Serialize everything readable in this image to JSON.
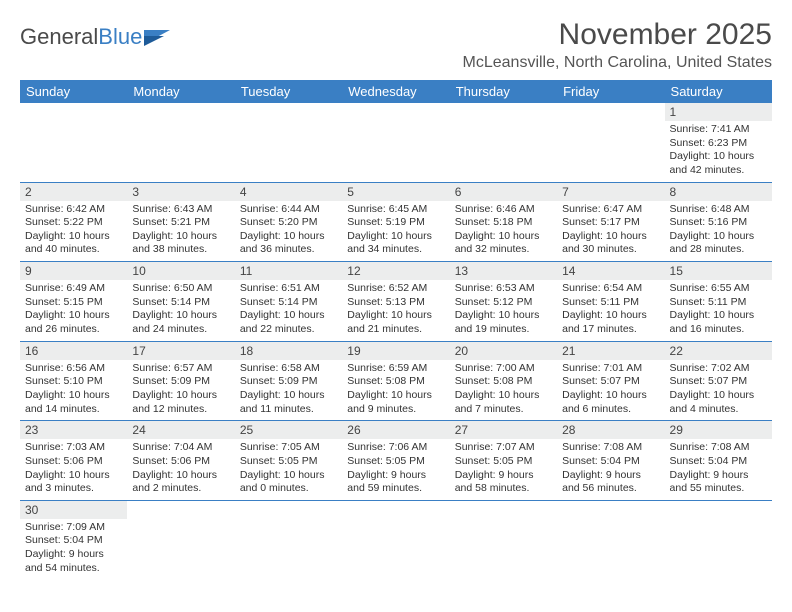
{
  "logo": {
    "general": "General",
    "blue": "Blue"
  },
  "title": "November 2025",
  "location": "McLeansville, North Carolina, United States",
  "day_headers": [
    "Sunday",
    "Monday",
    "Tuesday",
    "Wednesday",
    "Thursday",
    "Friday",
    "Saturday"
  ],
  "colors": {
    "header_bg": "#3a7fc4",
    "header_text": "#ffffff",
    "daynum_bg": "#eceded",
    "border": "#3a7fc4"
  },
  "weeks": [
    [
      null,
      null,
      null,
      null,
      null,
      null,
      {
        "n": "1",
        "sr": "Sunrise: 7:41 AM",
        "ss": "Sunset: 6:23 PM",
        "dl": "Daylight: 10 hours and 42 minutes."
      }
    ],
    [
      {
        "n": "2",
        "sr": "Sunrise: 6:42 AM",
        "ss": "Sunset: 5:22 PM",
        "dl": "Daylight: 10 hours and 40 minutes."
      },
      {
        "n": "3",
        "sr": "Sunrise: 6:43 AM",
        "ss": "Sunset: 5:21 PM",
        "dl": "Daylight: 10 hours and 38 minutes."
      },
      {
        "n": "4",
        "sr": "Sunrise: 6:44 AM",
        "ss": "Sunset: 5:20 PM",
        "dl": "Daylight: 10 hours and 36 minutes."
      },
      {
        "n": "5",
        "sr": "Sunrise: 6:45 AM",
        "ss": "Sunset: 5:19 PM",
        "dl": "Daylight: 10 hours and 34 minutes."
      },
      {
        "n": "6",
        "sr": "Sunrise: 6:46 AM",
        "ss": "Sunset: 5:18 PM",
        "dl": "Daylight: 10 hours and 32 minutes."
      },
      {
        "n": "7",
        "sr": "Sunrise: 6:47 AM",
        "ss": "Sunset: 5:17 PM",
        "dl": "Daylight: 10 hours and 30 minutes."
      },
      {
        "n": "8",
        "sr": "Sunrise: 6:48 AM",
        "ss": "Sunset: 5:16 PM",
        "dl": "Daylight: 10 hours and 28 minutes."
      }
    ],
    [
      {
        "n": "9",
        "sr": "Sunrise: 6:49 AM",
        "ss": "Sunset: 5:15 PM",
        "dl": "Daylight: 10 hours and 26 minutes."
      },
      {
        "n": "10",
        "sr": "Sunrise: 6:50 AM",
        "ss": "Sunset: 5:14 PM",
        "dl": "Daylight: 10 hours and 24 minutes."
      },
      {
        "n": "11",
        "sr": "Sunrise: 6:51 AM",
        "ss": "Sunset: 5:14 PM",
        "dl": "Daylight: 10 hours and 22 minutes."
      },
      {
        "n": "12",
        "sr": "Sunrise: 6:52 AM",
        "ss": "Sunset: 5:13 PM",
        "dl": "Daylight: 10 hours and 21 minutes."
      },
      {
        "n": "13",
        "sr": "Sunrise: 6:53 AM",
        "ss": "Sunset: 5:12 PM",
        "dl": "Daylight: 10 hours and 19 minutes."
      },
      {
        "n": "14",
        "sr": "Sunrise: 6:54 AM",
        "ss": "Sunset: 5:11 PM",
        "dl": "Daylight: 10 hours and 17 minutes."
      },
      {
        "n": "15",
        "sr": "Sunrise: 6:55 AM",
        "ss": "Sunset: 5:11 PM",
        "dl": "Daylight: 10 hours and 16 minutes."
      }
    ],
    [
      {
        "n": "16",
        "sr": "Sunrise: 6:56 AM",
        "ss": "Sunset: 5:10 PM",
        "dl": "Daylight: 10 hours and 14 minutes."
      },
      {
        "n": "17",
        "sr": "Sunrise: 6:57 AM",
        "ss": "Sunset: 5:09 PM",
        "dl": "Daylight: 10 hours and 12 minutes."
      },
      {
        "n": "18",
        "sr": "Sunrise: 6:58 AM",
        "ss": "Sunset: 5:09 PM",
        "dl": "Daylight: 10 hours and 11 minutes."
      },
      {
        "n": "19",
        "sr": "Sunrise: 6:59 AM",
        "ss": "Sunset: 5:08 PM",
        "dl": "Daylight: 10 hours and 9 minutes."
      },
      {
        "n": "20",
        "sr": "Sunrise: 7:00 AM",
        "ss": "Sunset: 5:08 PM",
        "dl": "Daylight: 10 hours and 7 minutes."
      },
      {
        "n": "21",
        "sr": "Sunrise: 7:01 AM",
        "ss": "Sunset: 5:07 PM",
        "dl": "Daylight: 10 hours and 6 minutes."
      },
      {
        "n": "22",
        "sr": "Sunrise: 7:02 AM",
        "ss": "Sunset: 5:07 PM",
        "dl": "Daylight: 10 hours and 4 minutes."
      }
    ],
    [
      {
        "n": "23",
        "sr": "Sunrise: 7:03 AM",
        "ss": "Sunset: 5:06 PM",
        "dl": "Daylight: 10 hours and 3 minutes."
      },
      {
        "n": "24",
        "sr": "Sunrise: 7:04 AM",
        "ss": "Sunset: 5:06 PM",
        "dl": "Daylight: 10 hours and 2 minutes."
      },
      {
        "n": "25",
        "sr": "Sunrise: 7:05 AM",
        "ss": "Sunset: 5:05 PM",
        "dl": "Daylight: 10 hours and 0 minutes."
      },
      {
        "n": "26",
        "sr": "Sunrise: 7:06 AM",
        "ss": "Sunset: 5:05 PM",
        "dl": "Daylight: 9 hours and 59 minutes."
      },
      {
        "n": "27",
        "sr": "Sunrise: 7:07 AM",
        "ss": "Sunset: 5:05 PM",
        "dl": "Daylight: 9 hours and 58 minutes."
      },
      {
        "n": "28",
        "sr": "Sunrise: 7:08 AM",
        "ss": "Sunset: 5:04 PM",
        "dl": "Daylight: 9 hours and 56 minutes."
      },
      {
        "n": "29",
        "sr": "Sunrise: 7:08 AM",
        "ss": "Sunset: 5:04 PM",
        "dl": "Daylight: 9 hours and 55 minutes."
      }
    ],
    [
      {
        "n": "30",
        "sr": "Sunrise: 7:09 AM",
        "ss": "Sunset: 5:04 PM",
        "dl": "Daylight: 9 hours and 54 minutes."
      },
      null,
      null,
      null,
      null,
      null,
      null
    ]
  ]
}
